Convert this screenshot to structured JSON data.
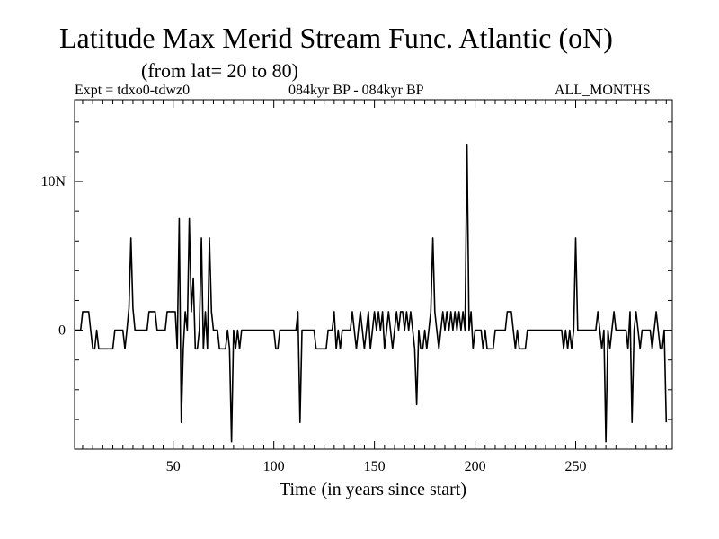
{
  "header": {
    "title": "Latitude Max Merid Stream Func. Atlantic (oN)",
    "subtitle": "(from lat= 20 to 80)",
    "expt": "Expt = tdxo0-tdwz0",
    "period": "084kyr BP - 084kyr BP",
    "months": "ALL_MONTHS"
  },
  "chart_data": {
    "type": "line",
    "title": "Latitude Max Merid Stream Func. Atlantic (oN)",
    "subtitle": "(from lat= 20 to 80)",
    "xlabel": "Time (in years since start)",
    "ylabel": "",
    "xlim": [
      1,
      298
    ],
    "ylim": [
      -8,
      15.5
    ],
    "x_ticks": [
      50,
      100,
      150,
      200,
      250
    ],
    "x_tick_labels": [
      "50",
      "100",
      "150",
      "200",
      "250"
    ],
    "y_ticks": [
      0,
      10
    ],
    "y_tick_labels": [
      "0",
      "10N"
    ],
    "grid": false,
    "series": [
      {
        "color": "#000000",
        "points": [
          [
            1,
            0
          ],
          [
            4,
            0
          ],
          [
            5,
            1.25
          ],
          [
            8,
            1.25
          ],
          [
            9,
            0
          ],
          [
            10,
            -1.25
          ],
          [
            11,
            -1.25
          ],
          [
            12,
            0
          ],
          [
            13,
            -1.25
          ],
          [
            20,
            -1.25
          ],
          [
            21,
            0
          ],
          [
            25,
            0
          ],
          [
            26,
            -1.25
          ],
          [
            27,
            0
          ],
          [
            28,
            1.5
          ],
          [
            29,
            6.2
          ],
          [
            30,
            1.5
          ],
          [
            31,
            0
          ],
          [
            37,
            0
          ],
          [
            38,
            1.25
          ],
          [
            41,
            1.25
          ],
          [
            42,
            0
          ],
          [
            46,
            0
          ],
          [
            47,
            1.25
          ],
          [
            51,
            1.25
          ],
          [
            52,
            -1.25
          ],
          [
            53,
            7.5
          ],
          [
            54,
            -6.2
          ],
          [
            55,
            -1.25
          ],
          [
            56,
            1.25
          ],
          [
            57,
            0
          ],
          [
            58,
            7.5
          ],
          [
            59,
            1.25
          ],
          [
            60,
            3.5
          ],
          [
            61,
            -1.25
          ],
          [
            62,
            -1.25
          ],
          [
            63,
            0
          ],
          [
            64,
            6.2
          ],
          [
            65,
            -1.25
          ],
          [
            66,
            1.25
          ],
          [
            67,
            -1.25
          ],
          [
            68,
            6.2
          ],
          [
            69,
            1.25
          ],
          [
            70,
            0
          ],
          [
            72,
            0
          ],
          [
            73,
            -1.25
          ],
          [
            76,
            -1.25
          ],
          [
            77,
            0
          ],
          [
            78,
            -1.25
          ],
          [
            79,
            -7.5
          ],
          [
            80,
            0
          ],
          [
            81,
            -1.25
          ],
          [
            82,
            0
          ],
          [
            83,
            -1.25
          ],
          [
            84,
            0
          ],
          [
            100,
            0
          ],
          [
            101,
            -1.25
          ],
          [
            102,
            -1.25
          ],
          [
            103,
            0
          ],
          [
            111,
            0
          ],
          [
            112,
            1.25
          ],
          [
            113,
            -6.2
          ],
          [
            114,
            0
          ],
          [
            120,
            0
          ],
          [
            121,
            -1.25
          ],
          [
            126,
            -1.25
          ],
          [
            127,
            0
          ],
          [
            129,
            0
          ],
          [
            130,
            1.25
          ],
          [
            131,
            -1.25
          ],
          [
            132,
            0
          ],
          [
            133,
            -1.25
          ],
          [
            134,
            0
          ],
          [
            138,
            0
          ],
          [
            139,
            1.25
          ],
          [
            140,
            0
          ],
          [
            141,
            -1.25
          ],
          [
            142,
            0
          ],
          [
            143,
            1.25
          ],
          [
            144,
            0
          ],
          [
            145,
            -1.25
          ],
          [
            146,
            0
          ],
          [
            147,
            1.25
          ],
          [
            148,
            -1.25
          ],
          [
            149,
            0
          ],
          [
            150,
            1.25
          ],
          [
            151,
            0
          ],
          [
            152,
            1.25
          ],
          [
            153,
            0
          ],
          [
            154,
            1.25
          ],
          [
            155,
            -1.25
          ],
          [
            156,
            0
          ],
          [
            157,
            1.25
          ],
          [
            158,
            0
          ],
          [
            159,
            -1.25
          ],
          [
            160,
            0
          ],
          [
            161,
            1.25
          ],
          [
            162,
            0
          ],
          [
            163,
            1.25
          ],
          [
            164,
            1.25
          ],
          [
            165,
            0
          ],
          [
            166,
            1.25
          ],
          [
            167,
            0
          ],
          [
            168,
            1.25
          ],
          [
            169,
            0
          ],
          [
            170,
            -1.25
          ],
          [
            171,
            -5.0
          ],
          [
            172,
            0
          ],
          [
            173,
            -1.25
          ],
          [
            174,
            -1.25
          ],
          [
            175,
            0
          ],
          [
            176,
            -1.25
          ],
          [
            177,
            0
          ],
          [
            178,
            1.25
          ],
          [
            179,
            6.2
          ],
          [
            180,
            1.25
          ],
          [
            181,
            0
          ],
          [
            182,
            -1.25
          ],
          [
            183,
            0
          ],
          [
            184,
            1.25
          ],
          [
            185,
            0
          ],
          [
            186,
            1.25
          ],
          [
            187,
            0
          ],
          [
            188,
            1.25
          ],
          [
            189,
            0
          ],
          [
            190,
            1.25
          ],
          [
            191,
            0
          ],
          [
            192,
            1.25
          ],
          [
            193,
            0
          ],
          [
            194,
            1.25
          ],
          [
            195,
            0
          ],
          [
            196,
            12.5
          ],
          [
            197,
            0
          ],
          [
            198,
            1.25
          ],
          [
            199,
            -1.25
          ],
          [
            200,
            0
          ],
          [
            203,
            0
          ],
          [
            204,
            -1.25
          ],
          [
            205,
            0
          ],
          [
            206,
            -1.25
          ],
          [
            209,
            -1.25
          ],
          [
            210,
            0
          ],
          [
            215,
            0
          ],
          [
            216,
            1.25
          ],
          [
            218,
            1.25
          ],
          [
            219,
            0
          ],
          [
            220,
            -1.25
          ],
          [
            221,
            0
          ],
          [
            222,
            -1.25
          ],
          [
            225,
            -1.25
          ],
          [
            226,
            0
          ],
          [
            243,
            0
          ],
          [
            244,
            -1.25
          ],
          [
            245,
            0
          ],
          [
            246,
            -1.25
          ],
          [
            247,
            0
          ],
          [
            248,
            -1.25
          ],
          [
            249,
            0
          ],
          [
            250,
            6.2
          ],
          [
            251,
            0
          ],
          [
            260,
            0
          ],
          [
            261,
            1.25
          ],
          [
            262,
            0
          ],
          [
            263,
            -1.25
          ],
          [
            264,
            0
          ],
          [
            265,
            -7.5
          ],
          [
            266,
            0
          ],
          [
            267,
            -1.25
          ],
          [
            268,
            0
          ],
          [
            269,
            1.25
          ],
          [
            270,
            0
          ],
          [
            275,
            0
          ],
          [
            276,
            -1.25
          ],
          [
            277,
            1.25
          ],
          [
            278,
            -6.2
          ],
          [
            279,
            0
          ],
          [
            280,
            1.25
          ],
          [
            281,
            0
          ],
          [
            282,
            -1.25
          ],
          [
            283,
            0
          ],
          [
            287,
            0
          ],
          [
            288,
            -1.25
          ],
          [
            289,
            0
          ],
          [
            290,
            1.25
          ],
          [
            291,
            0
          ],
          [
            292,
            -1.25
          ],
          [
            293,
            -1.25
          ],
          [
            294,
            0
          ],
          [
            295,
            -6.2
          ]
        ]
      }
    ]
  }
}
